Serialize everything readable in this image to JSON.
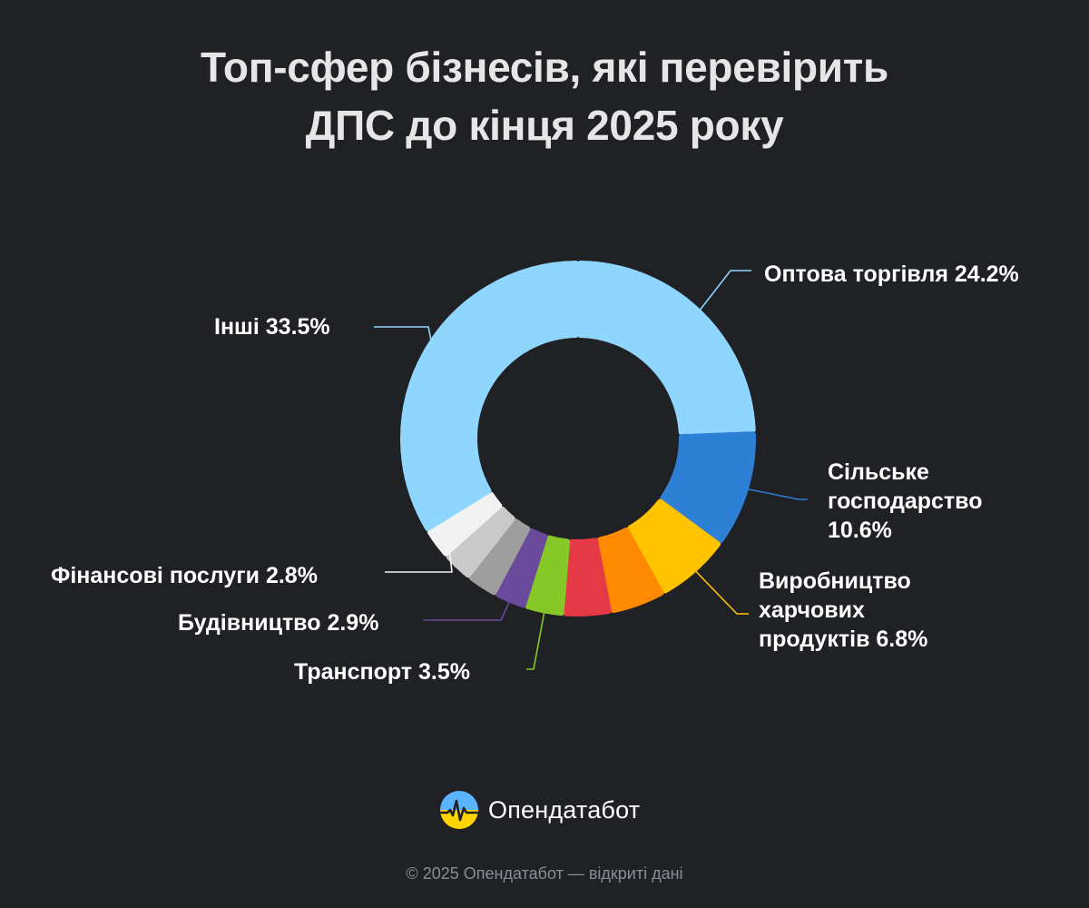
{
  "title_lines": [
    "Топ-сфер бізнесів, які перевірить",
    "ДПС до кінця 2025 року"
  ],
  "chart_data": {
    "type": "pie",
    "variant": "donut",
    "slices": [
      {
        "label_lines": [
          "Оптова торгівля 24.2%"
        ],
        "value": 24.2,
        "color": "#8fd6ff"
      },
      {
        "label_lines": [
          "Сільське",
          "господарство",
          "10.6%"
        ],
        "value": 10.6,
        "color": "#2e7fd6"
      },
      {
        "label_lines": [
          "Виробництво",
          "харчових",
          "продуктів 6.8%"
        ],
        "value": 6.8,
        "color": "#ffc300"
      },
      {
        "label_lines": [],
        "value": 5.0,
        "color": "#ff8a00"
      },
      {
        "label_lines": [],
        "value": 4.3,
        "color": "#e63946"
      },
      {
        "label_lines": [
          "Транспорт 3.5%"
        ],
        "value": 3.5,
        "color": "#86c926"
      },
      {
        "label_lines": [
          "Будівництво 2.9%"
        ],
        "value": 2.9,
        "color": "#6a4a9a"
      },
      {
        "label_lines": [],
        "value": 2.8,
        "color": "#9e9e9e"
      },
      {
        "label_lines": [],
        "value": 2.8,
        "color": "#c9c9c9"
      },
      {
        "label_lines": [
          "Фінансові послуги 2.8%"
        ],
        "value": 2.8,
        "color": "#f2f2f2"
      },
      {
        "label_lines": [
          "Інші 33.5%"
        ],
        "value": 33.5,
        "color": "#8fd6ff"
      }
    ]
  },
  "brand": {
    "name": "Опендатабот",
    "logo_colors": [
      "#5bb4ff",
      "#ffd400"
    ]
  },
  "footer": "© 2025 Опендатабот — відкриті дані"
}
